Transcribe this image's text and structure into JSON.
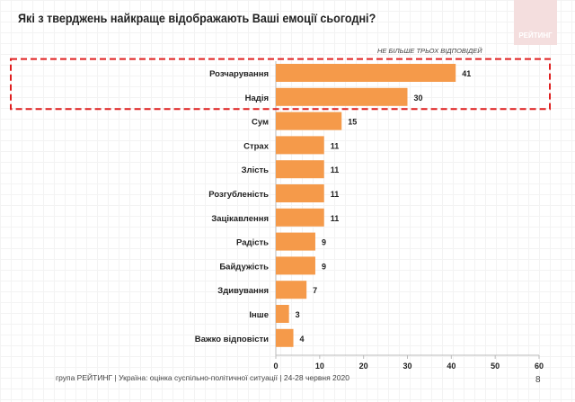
{
  "logo_text": "РЕЙТИНГ",
  "footer": "група РЕЙТИНГ |  Україна: оцінка суспільно-політичної  ситуації  | 24-28 червня  2020",
  "page_number": "8",
  "colors": {
    "bar": "#f59a4a",
    "highlight": "#e02020"
  },
  "chart_data": {
    "type": "bar",
    "orientation": "horizontal",
    "title": "Які з тверджень найкраще відображають Ваші емоції сьогодні?",
    "subtitle": "НЕ БІЛЬШЕ ТРЬОХ ВІДПОВІДЕЙ",
    "categories": [
      "Розчарування",
      "Надія",
      "Сум",
      "Страх",
      "Злість",
      "Розгубленість",
      "Зацікавлення",
      "Радість",
      "Байдужість",
      "Здивування",
      "Інше",
      "Важко відповісти"
    ],
    "values": [
      41,
      30,
      15,
      11,
      11,
      11,
      11,
      9,
      9,
      7,
      3,
      4
    ],
    "xlim": [
      0,
      60
    ],
    "xticks": [
      0,
      10,
      20,
      30,
      40,
      50,
      60
    ],
    "highlighted": [
      "Розчарування",
      "Надія"
    ],
    "xlabel": "",
    "ylabel": ""
  }
}
